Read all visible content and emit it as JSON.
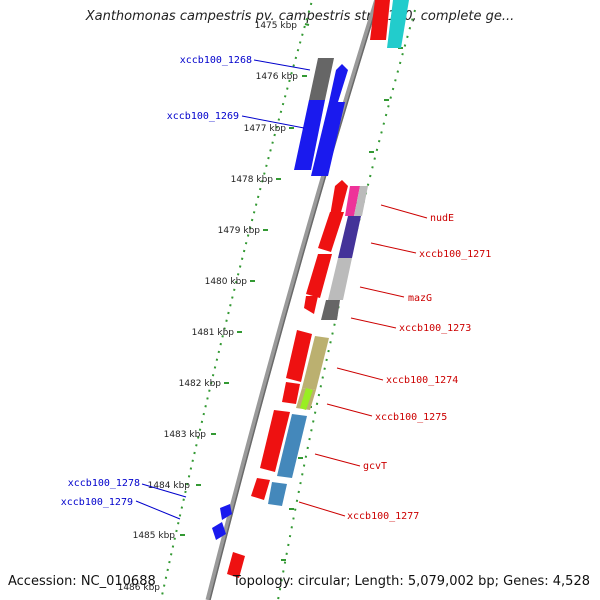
{
  "title": "Xanthomonas campestris pv. campestris str. B100, complete ge...",
  "footer": {
    "accession": "Accession: NC_010688",
    "topology": "Topology: circular; Length: 5,079,002 bp; Genes: 4,528"
  },
  "colors": {
    "plus_label": "#0000cc",
    "minus_label": "#cc0000",
    "backbone": "#999999",
    "tick": "#339933"
  },
  "ticks": [
    "1475 kbp",
    "1476 kbp",
    "1477 kbp",
    "1478 kbp",
    "1479 kbp",
    "1480 kbp",
    "1481 kbp",
    "1482 kbp",
    "1483 kbp",
    "1484 kbp",
    "1485 kbp",
    "1486 kbp"
  ],
  "labels_left": [
    "xccb100_1268",
    "xccb100_1269",
    "xccb100_1278",
    "xccb100_1279"
  ],
  "labels_right": [
    "nudE",
    "xccb100_1271",
    "mazG",
    "xccb100_1273",
    "xccb100_1274",
    "xccb100_1275",
    "gcvT",
    "xccb100_1277"
  ]
}
